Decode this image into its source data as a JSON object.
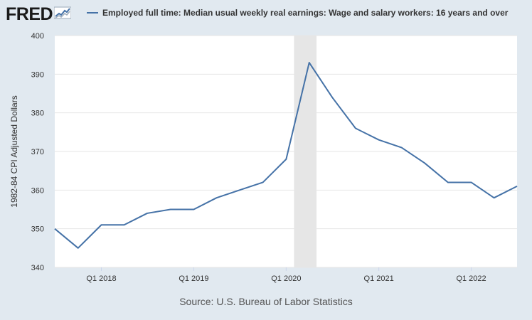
{
  "logo": {
    "text": "FRED",
    "icon": "chart-line-icon"
  },
  "legend": {
    "label": "Employed full time: Median usual weekly real earnings: Wage and salary workers: 16 years and over",
    "color": "#4572a7"
  },
  "source": "Source: U.S. Bureau of Labor Statistics",
  "colors": {
    "background": "#e1e9f0",
    "plot_background": "#ffffff",
    "line": "#4572a7",
    "recession": "#e6e6e6",
    "grid": "#e6e6e6"
  },
  "chart_data": {
    "type": "line",
    "ylabel": "1982-84 CPI Adjusted Dollars",
    "ylim": [
      340,
      400
    ],
    "yticks": [
      340,
      350,
      360,
      370,
      380,
      390,
      400
    ],
    "xlim": [
      "2017-07-01",
      "2022-07-01"
    ],
    "xticks": [
      {
        "label": "Q1 2018",
        "date": "2018-01-01"
      },
      {
        "label": "Q1 2019",
        "date": "2019-01-01"
      },
      {
        "label": "Q1 2020",
        "date": "2020-01-01"
      },
      {
        "label": "Q1 2021",
        "date": "2021-01-01"
      },
      {
        "label": "Q1 2022",
        "date": "2022-01-01"
      }
    ],
    "grid": true,
    "legend_position": "top",
    "recession_shading": [
      {
        "start": "2020-02-01",
        "end": "2020-04-30"
      }
    ],
    "series": [
      {
        "name": "Employed full time: Median usual weekly real earnings: Wage and salary workers: 16 years and over",
        "points": [
          {
            "x": "2017-07-01",
            "y": 350
          },
          {
            "x": "2017-10-01",
            "y": 345
          },
          {
            "x": "2018-01-01",
            "y": 351
          },
          {
            "x": "2018-04-01",
            "y": 351
          },
          {
            "x": "2018-07-01",
            "y": 354
          },
          {
            "x": "2018-10-01",
            "y": 355
          },
          {
            "x": "2019-01-01",
            "y": 355
          },
          {
            "x": "2019-04-01",
            "y": 358
          },
          {
            "x": "2019-07-01",
            "y": 360
          },
          {
            "x": "2019-10-01",
            "y": 362
          },
          {
            "x": "2020-01-01",
            "y": 368
          },
          {
            "x": "2020-04-01",
            "y": 393
          },
          {
            "x": "2020-07-01",
            "y": 384
          },
          {
            "x": "2020-10-01",
            "y": 376
          },
          {
            "x": "2021-01-01",
            "y": 373
          },
          {
            "x": "2021-04-01",
            "y": 371
          },
          {
            "x": "2021-07-01",
            "y": 367
          },
          {
            "x": "2021-10-01",
            "y": 362
          },
          {
            "x": "2022-01-01",
            "y": 362
          },
          {
            "x": "2022-04-01",
            "y": 358
          },
          {
            "x": "2022-07-01",
            "y": 361
          }
        ]
      }
    ]
  }
}
